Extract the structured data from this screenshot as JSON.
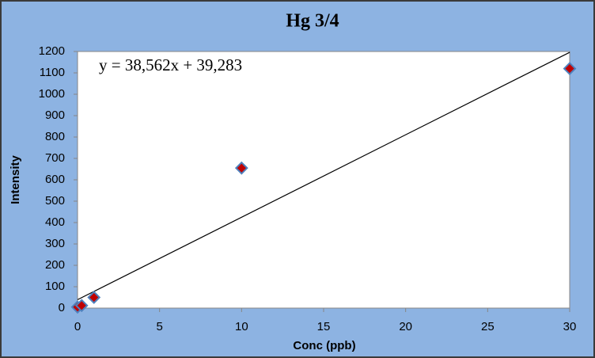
{
  "chart_data": {
    "type": "scatter",
    "title": "Hg 3/4",
    "xlabel": "Conc (ppb)",
    "ylabel": "Intensity",
    "annotation": "y = 38,562x + 39,283",
    "trendline": {
      "slope": 38.562,
      "intercept": 39.283,
      "color": "#000000"
    },
    "x": [
      0,
      0.25,
      1,
      10,
      30
    ],
    "values": [
      5,
      12,
      50,
      655,
      1120
    ],
    "color": "#c00000",
    "edge_color": "#4f81bd",
    "xlim": [
      0,
      30
    ],
    "xticks": [
      0,
      5,
      10,
      15,
      20,
      25,
      30
    ],
    "ylim": [
      0,
      1200
    ],
    "yticks": [
      0,
      100,
      200,
      300,
      400,
      500,
      600,
      700,
      800,
      900,
      1000,
      1100,
      1200
    ],
    "grid": false
  }
}
